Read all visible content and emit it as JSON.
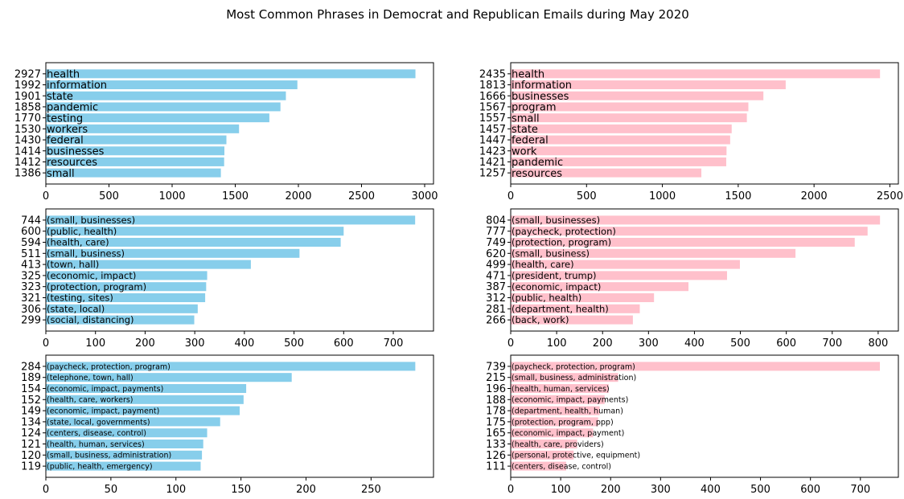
{
  "title": "Most Common Phrases in Democrat and Republican Emails during May 2020",
  "colors": {
    "democrat": "#87ceeb",
    "republican": "#ffc0cb"
  },
  "chart_data": [
    {
      "type": "bar",
      "orientation": "horizontal",
      "party": "democrat",
      "panel": "row1-left",
      "categories": [
        "health",
        "information",
        "state",
        "pandemic",
        "testing",
        "workers",
        "federal",
        "businesses",
        "resources",
        "small"
      ],
      "values": [
        2927,
        1992,
        1901,
        1858,
        1770,
        1530,
        1430,
        1414,
        1412,
        1386
      ],
      "xlim": [
        0,
        3070
      ],
      "xticks": [
        0,
        500,
        1000,
        1500,
        2000,
        2500,
        3000
      ]
    },
    {
      "type": "bar",
      "orientation": "horizontal",
      "party": "republican",
      "panel": "row1-right",
      "categories": [
        "health",
        "information",
        "businesses",
        "program",
        "small",
        "state",
        "federal",
        "work",
        "pandemic",
        "resources"
      ],
      "values": [
        2435,
        1813,
        1666,
        1567,
        1557,
        1457,
        1447,
        1423,
        1421,
        1257
      ],
      "xlim": [
        0,
        2556
      ],
      "xticks": [
        0,
        500,
        1000,
        1500,
        2000,
        2500
      ]
    },
    {
      "type": "bar",
      "orientation": "horizontal",
      "party": "democrat",
      "panel": "row2-left",
      "categories": [
        "(small, businesses)",
        "(public, health)",
        "(health, care)",
        "(small, business)",
        "(town, hall)",
        "(economic, impact)",
        "(protection, program)",
        "(testing, sites)",
        "(state, local)",
        "(social, distancing)"
      ],
      "values": [
        744,
        600,
        594,
        511,
        413,
        325,
        323,
        321,
        306,
        299
      ],
      "xlim": [
        0,
        781
      ],
      "xticks": [
        0,
        100,
        200,
        300,
        400,
        500,
        600,
        700
      ]
    },
    {
      "type": "bar",
      "orientation": "horizontal",
      "party": "republican",
      "panel": "row2-right",
      "categories": [
        "(small, businesses)",
        "(paycheck, protection)",
        "(protection, program)",
        "(small, business)",
        "(health, care)",
        "(president, trump)",
        "(economic, impact)",
        "(public, health)",
        "(department, health)",
        "(back, work)"
      ],
      "values": [
        804,
        777,
        749,
        620,
        499,
        471,
        387,
        312,
        281,
        266
      ],
      "xlim": [
        0,
        844
      ],
      "xticks": [
        0,
        100,
        200,
        300,
        400,
        500,
        600,
        700,
        800
      ]
    },
    {
      "type": "bar",
      "orientation": "horizontal",
      "party": "democrat",
      "panel": "row3-left",
      "categories": [
        "(paycheck, protection, program)",
        "(telephone, town, hall)",
        "(economic, impact, payments)",
        "(health, care, workers)",
        "(economic, impact, payment)",
        "(state, local, governments)",
        "(centers, disease, control)",
        "(health, human, services)",
        "(small, business, administration)",
        "(public, health, emergency)"
      ],
      "values": [
        284,
        189,
        154,
        152,
        149,
        134,
        124,
        121,
        120,
        119
      ],
      "xlim": [
        0,
        298
      ],
      "xticks": [
        0,
        50,
        100,
        150,
        200,
        250
      ]
    },
    {
      "type": "bar",
      "orientation": "horizontal",
      "party": "republican",
      "panel": "row3-right",
      "categories": [
        "(paycheck, protection, program)",
        "(small, business, administration)",
        "(health, human, services)",
        "(economic, impact, payments)",
        "(department, health, human)",
        "(protection, program, ppp)",
        "(economic, impact, payment)",
        "(health, care, providers)",
        "(personal, protective, equipment)",
        "(centers, disease, control)"
      ],
      "values": [
        739,
        215,
        196,
        188,
        178,
        175,
        165,
        133,
        126,
        111
      ],
      "xlim": [
        0,
        776
      ],
      "xticks": [
        0,
        100,
        200,
        300,
        400,
        500,
        600,
        700
      ]
    }
  ]
}
